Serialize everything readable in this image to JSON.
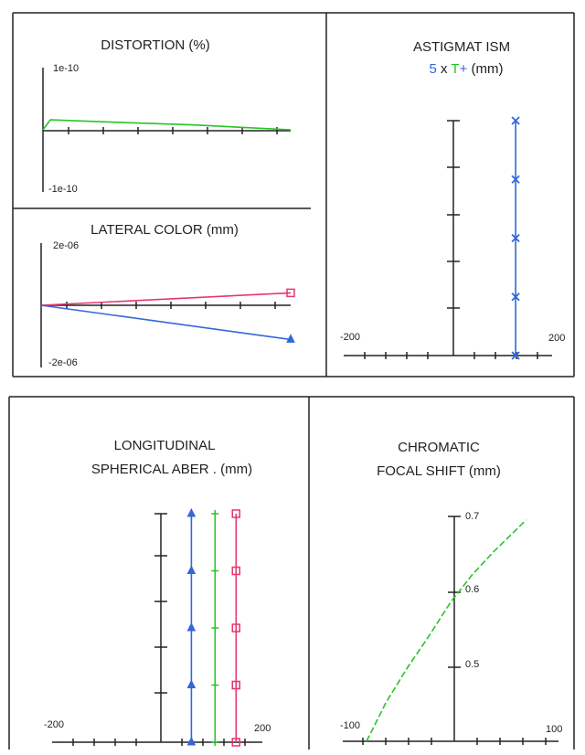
{
  "chart_data": [
    {
      "id": "distortion",
      "type": "line",
      "title": "DISTORTION (%)",
      "y_tick_labels": [
        "1e-10",
        "-1e-10"
      ],
      "ylim": [
        -1e-10,
        1e-10
      ],
      "x_range": [
        0,
        1
      ],
      "series": [
        {
          "color": "#27c427",
          "marker": "none",
          "x": [
            0,
            0.03,
            0.3,
            0.6,
            0.8,
            1.0
          ],
          "y": [
            0,
            1.6e-11,
            1.2e-11,
            8e-12,
            4e-12,
            0
          ]
        }
      ]
    },
    {
      "id": "lateral-color",
      "type": "line",
      "title": "LATERAL COLOR (mm)",
      "y_tick_labels": [
        "2e-06",
        "-2e-06"
      ],
      "ylim": [
        -2e-06,
        2e-06
      ],
      "x_range": [
        0,
        1
      ],
      "series": [
        {
          "color": "#e8366b",
          "marker": "square",
          "x": [
            0,
            1
          ],
          "y": [
            0,
            4e-07
          ]
        },
        {
          "color": "#3366d9",
          "marker": "triangle",
          "x": [
            0,
            1
          ],
          "y": [
            0,
            -1.1e-06
          ]
        }
      ]
    },
    {
      "id": "astigmatism",
      "type": "line",
      "title": "ASTIGMAT ISM",
      "subtitle": {
        "factor": "5",
        "x": "x",
        "t": "T",
        "plus": "+",
        "unit": "(mm)"
      },
      "x_tick_labels": [
        "-200",
        "200"
      ],
      "xlim": [
        -200,
        200
      ],
      "y_range": [
        0,
        1
      ],
      "series": [
        {
          "color": "#3366d9",
          "marker": "x",
          "x": [
            130,
            130,
            130,
            130,
            130
          ],
          "y": [
            0,
            0.25,
            0.5,
            0.75,
            1.0
          ]
        }
      ]
    },
    {
      "id": "longitudinal-spherical",
      "type": "line",
      "title_line1": "LONGITUDINAL",
      "title_line2": "SPHERICAL ABER . (mm)",
      "x_tick_labels": [
        "-200",
        "200"
      ],
      "xlim": [
        -200,
        200
      ],
      "y_range": [
        0,
        1
      ],
      "series": [
        {
          "color": "#3366d9",
          "marker": "triangle",
          "x": [
            65,
            65,
            65,
            65,
            65
          ],
          "y": [
            0,
            0.25,
            0.5,
            0.75,
            1.0
          ]
        },
        {
          "color": "#27c427",
          "marker": "plus",
          "x": [
            110,
            110,
            110,
            110,
            110
          ],
          "y": [
            0,
            0.25,
            0.5,
            0.75,
            1.0
          ]
        },
        {
          "color": "#e8366b",
          "marker": "square",
          "x": [
            150,
            150,
            150,
            150,
            150
          ],
          "y": [
            0,
            0.25,
            0.5,
            0.75,
            1.0
          ]
        }
      ]
    },
    {
      "id": "chromatic-focal-shift",
      "type": "line",
      "title_line1": "CHROMATIC",
      "title_line2": "FOCAL SHIFT (mm)",
      "x_tick_labels": [
        "-100",
        "100"
      ],
      "y_tick_labels": [
        "0.7",
        "0.6",
        "0.5"
      ],
      "xlim": [
        -100,
        100
      ],
      "ylim": [
        0.38,
        0.7
      ],
      "series": [
        {
          "color": "#27c427",
          "marker": "none",
          "dashed": true,
          "x": [
            -78,
            -60,
            -40,
            -20,
            0,
            20,
            40,
            60,
            70
          ],
          "y": [
            0.38,
            0.435,
            0.485,
            0.53,
            0.578,
            0.617,
            0.65,
            0.68,
            0.695
          ]
        }
      ]
    }
  ]
}
